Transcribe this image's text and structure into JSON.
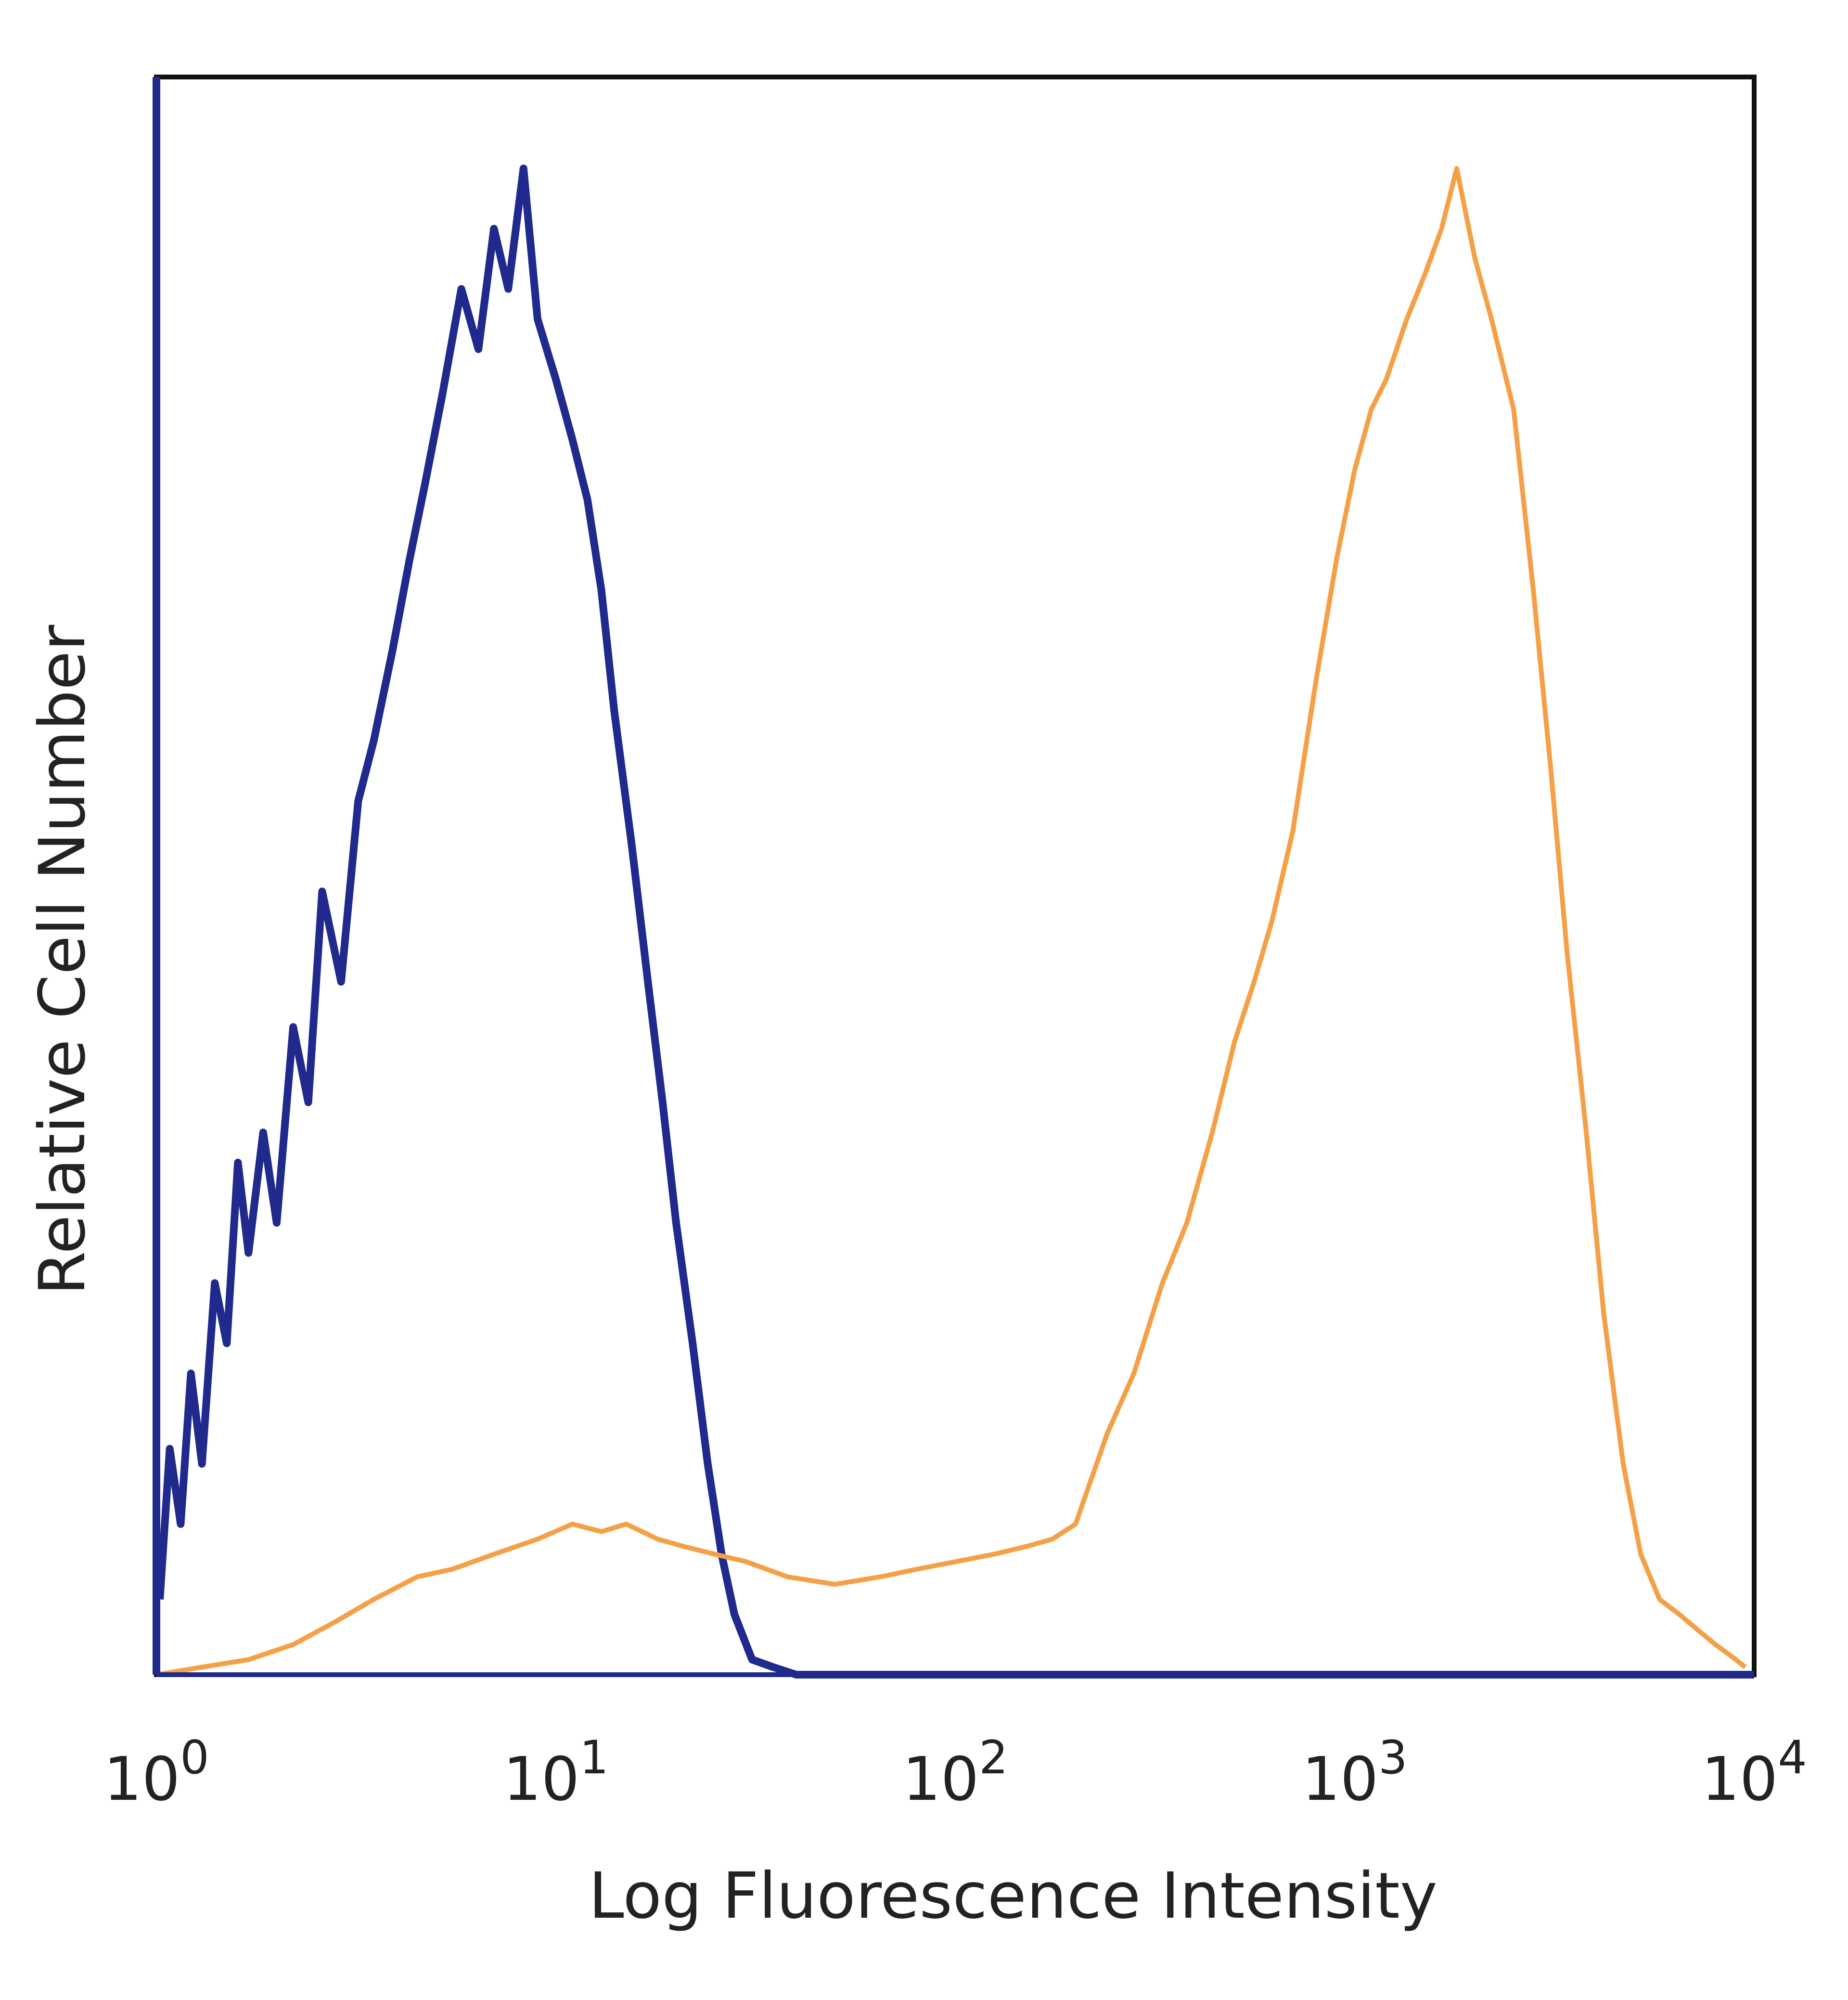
{
  "chart_data": {
    "type": "area",
    "xlabel": "Log Fluorescence Intensity",
    "ylabel": "Relative Cell Number",
    "title": "",
    "x_scale": "log",
    "xlim": [
      1,
      10000
    ],
    "ylim": [
      0,
      1.0
    ],
    "x_ticks": [
      {
        "base": "10",
        "exp": "0",
        "value": 1
      },
      {
        "base": "10",
        "exp": "1",
        "value": 10
      },
      {
        "base": "10",
        "exp": "2",
        "value": 100
      },
      {
        "base": "10",
        "exp": "3",
        "value": 1000
      },
      {
        "base": "10",
        "exp": "4",
        "value": 10000
      }
    ],
    "grid": false,
    "legend": "none",
    "series": [
      {
        "color": "#1f2a8c",
        "points": [
          [
            1.02,
            0.05
          ],
          [
            1.08,
            0.15
          ],
          [
            1.15,
            0.1
          ],
          [
            1.22,
            0.2
          ],
          [
            1.3,
            0.14
          ],
          [
            1.4,
            0.26
          ],
          [
            1.5,
            0.22
          ],
          [
            1.6,
            0.34
          ],
          [
            1.7,
            0.28
          ],
          [
            1.85,
            0.36
          ],
          [
            2.0,
            0.3
          ],
          [
            2.2,
            0.43
          ],
          [
            2.4,
            0.38
          ],
          [
            2.6,
            0.52
          ],
          [
            2.9,
            0.46
          ],
          [
            3.2,
            0.58
          ],
          [
            3.5,
            0.62
          ],
          [
            3.9,
            0.68
          ],
          [
            4.3,
            0.74
          ],
          [
            4.7,
            0.79
          ],
          [
            5.2,
            0.85
          ],
          [
            5.8,
            0.92
          ],
          [
            6.4,
            0.88
          ],
          [
            7.0,
            0.96
          ],
          [
            7.6,
            0.92
          ],
          [
            8.3,
            1.0
          ],
          [
            9.0,
            0.9
          ],
          [
            10.0,
            0.86
          ],
          [
            11.0,
            0.82
          ],
          [
            12.0,
            0.78
          ],
          [
            13.0,
            0.72
          ],
          [
            14.0,
            0.64
          ],
          [
            15.5,
            0.55
          ],
          [
            17.0,
            0.46
          ],
          [
            18.5,
            0.38
          ],
          [
            20.0,
            0.3
          ],
          [
            22.0,
            0.22
          ],
          [
            24.0,
            0.14
          ],
          [
            26.0,
            0.08
          ],
          [
            28.0,
            0.04
          ],
          [
            31.0,
            0.01
          ],
          [
            35.0,
            0.005
          ],
          [
            40.0,
            0.0
          ],
          [
            10000.0,
            0.0
          ]
        ]
      },
      {
        "color": "#f5a046",
        "points": [
          [
            1.0,
            0.0
          ],
          [
            1.3,
            0.005
          ],
          [
            1.7,
            0.01
          ],
          [
            2.2,
            0.02
          ],
          [
            2.8,
            0.035
          ],
          [
            3.5,
            0.05
          ],
          [
            4.5,
            0.065
          ],
          [
            5.5,
            0.07
          ],
          [
            7.0,
            0.08
          ],
          [
            9.0,
            0.09
          ],
          [
            11.0,
            0.1
          ],
          [
            13.0,
            0.095
          ],
          [
            15.0,
            0.1
          ],
          [
            18.0,
            0.09
          ],
          [
            21.0,
            0.085
          ],
          [
            25.0,
            0.08
          ],
          [
            30.0,
            0.075
          ],
          [
            38.0,
            0.065
          ],
          [
            50.0,
            0.06
          ],
          [
            65.0,
            0.065
          ],
          [
            80.0,
            0.07
          ],
          [
            100.0,
            0.075
          ],
          [
            125.0,
            0.08
          ],
          [
            150.0,
            0.085
          ],
          [
            175.0,
            0.09
          ],
          [
            200.0,
            0.1
          ],
          [
            240.0,
            0.16
          ],
          [
            280.0,
            0.2
          ],
          [
            330.0,
            0.26
          ],
          [
            380.0,
            0.3
          ],
          [
            440.0,
            0.36
          ],
          [
            500.0,
            0.42
          ],
          [
            560.0,
            0.46
          ],
          [
            620.0,
            0.5
          ],
          [
            700.0,
            0.56
          ],
          [
            800.0,
            0.66
          ],
          [
            900.0,
            0.74
          ],
          [
            1000.0,
            0.8
          ],
          [
            1100.0,
            0.84
          ],
          [
            1200.0,
            0.86
          ],
          [
            1350.0,
            0.9
          ],
          [
            1500.0,
            0.93
          ],
          [
            1650.0,
            0.96
          ],
          [
            1800.0,
            1.0
          ],
          [
            2000.0,
            0.94
          ],
          [
            2200.0,
            0.9
          ],
          [
            2500.0,
            0.84
          ],
          [
            2800.0,
            0.72
          ],
          [
            3100.0,
            0.6
          ],
          [
            3400.0,
            0.48
          ],
          [
            3800.0,
            0.36
          ],
          [
            4200.0,
            0.24
          ],
          [
            4700.0,
            0.14
          ],
          [
            5200.0,
            0.08
          ],
          [
            5800.0,
            0.05
          ],
          [
            6500.0,
            0.04
          ],
          [
            7200.0,
            0.03
          ],
          [
            8000.0,
            0.02
          ],
          [
            8800.0,
            0.012
          ],
          [
            9500.0,
            0.005
          ]
        ]
      }
    ]
  }
}
